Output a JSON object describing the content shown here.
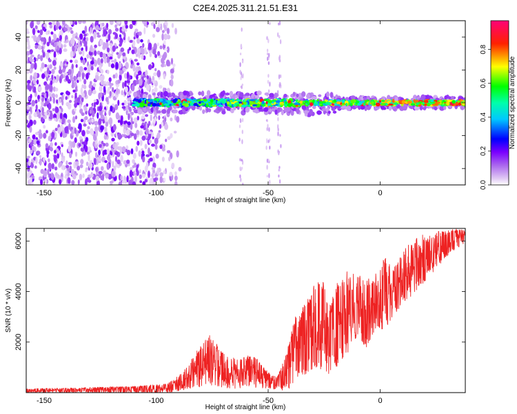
{
  "title": "C2E4.2025.311.21.51.E31",
  "chart_data": [
    {
      "type": "heatmap",
      "title": "C2E4.2025.311.21.51.E31",
      "xlabel": "Height of straight line (km)",
      "ylabel": "Frequency (Hz)",
      "xlim": [
        -158,
        38
      ],
      "ylim": [
        -50,
        50
      ],
      "x_ticks": [
        -150,
        -100,
        -50,
        0
      ],
      "y_ticks": [
        -40,
        -20,
        0,
        20,
        40
      ],
      "colorbar": {
        "label": "Normalized spectral amplitude",
        "range": [
          0,
          0.97
        ],
        "ticks": [
          0.0,
          0.2,
          0.4,
          0.6,
          0.8
        ],
        "colors": [
          "#ffffff",
          "#cc88ee",
          "#7a00ff",
          "#0000ff",
          "#00ffff",
          "#00ff00",
          "#ffff00",
          "#ff0000",
          "#ff0077"
        ]
      },
      "features": {
        "noise_region_km": [
          -158,
          -88
        ],
        "signal_track_km": [
          -110,
          38
        ],
        "signal_center_hz": 0,
        "vertical_streaks_km": [
          -62,
          -50,
          -45
        ]
      }
    },
    {
      "type": "line",
      "xlabel": "Height of straight line (km)",
      "ylabel": "SNR (10 * v/v)",
      "xlim": [
        -158,
        38
      ],
      "ylim": [
        0,
        6500
      ],
      "x_ticks": [
        -150,
        -100,
        -50,
        0
      ],
      "y_ticks": [
        2000,
        4000,
        6000
      ],
      "color": "#ee2222",
      "series": [
        {
          "name": "SNR",
          "envelope_x": [
            -158,
            -110,
            -95,
            -88,
            -82,
            -76,
            -70,
            -64,
            -58,
            -54,
            -50,
            -46,
            -42,
            -38,
            -34,
            -30,
            -26,
            -22,
            -18,
            -14,
            -10,
            -6,
            -2,
            2,
            6,
            10,
            14,
            18,
            22,
            26,
            30,
            34,
            38
          ],
          "envelope_low": [
            0,
            0,
            0,
            100,
            200,
            300,
            200,
            150,
            200,
            200,
            150,
            100,
            100,
            300,
            600,
            900,
            900,
            700,
            1200,
            1500,
            2000,
            1800,
            2500,
            2500,
            3000,
            3500,
            3800,
            4200,
            4600,
            5000,
            5400,
            5700,
            5900
          ],
          "envelope_high": [
            150,
            250,
            350,
            800,
            1700,
            2300,
            1600,
            1300,
            1500,
            1300,
            800,
            600,
            1500,
            3000,
            3500,
            4200,
            4500,
            3500,
            4800,
            5000,
            4700,
            4500,
            4800,
            5400,
            5000,
            5600,
            6000,
            6300,
            6200,
            6400,
            6400,
            6500,
            6400
          ]
        }
      ]
    }
  ]
}
